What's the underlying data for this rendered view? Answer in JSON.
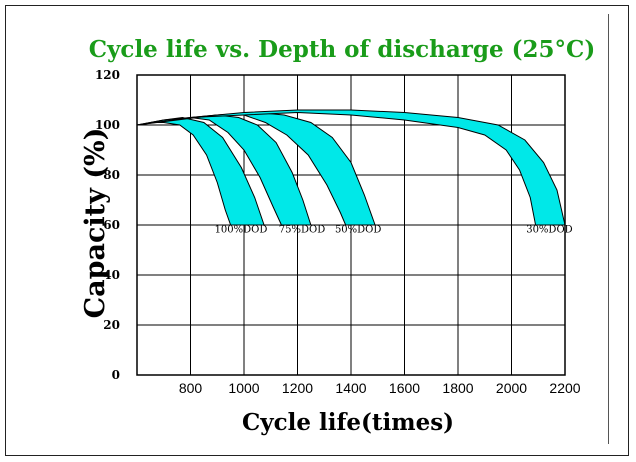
{
  "chart_data": {
    "type": "area",
    "title": "Cycle life vs. Depth of discharge (25°C)",
    "xlabel": "Cycle life(times)",
    "ylabel": "Capacity (%)",
    "x_ticks": [
      800,
      1000,
      1200,
      1400,
      1600,
      1800,
      2000,
      2200
    ],
    "y_ticks": [
      0,
      20,
      40,
      60,
      80,
      100,
      120
    ],
    "xlim": [
      600,
      2200
    ],
    "ylim": [
      0,
      120
    ],
    "grid": true,
    "colors": {
      "band": "#00e8e8",
      "title": "#1a9c1a",
      "grid": "#000000"
    },
    "series": [
      {
        "label": "100%DOD",
        "label_pos": [
          890,
          57
        ],
        "upper": [
          [
            600,
            100
          ],
          [
            650,
            101
          ],
          [
            700,
            102
          ],
          [
            770,
            103
          ],
          [
            850,
            101
          ],
          [
            920,
            95
          ],
          [
            990,
            83
          ],
          [
            1040,
            71
          ],
          [
            1075,
            60
          ]
        ],
        "lower": [
          [
            600,
            100
          ],
          [
            650,
            101
          ],
          [
            700,
            101
          ],
          [
            760,
            100
          ],
          [
            810,
            96
          ],
          [
            860,
            88
          ],
          [
            900,
            77
          ],
          [
            930,
            66
          ],
          [
            950,
            60
          ]
        ]
      },
      {
        "label": "75%DOD",
        "label_pos": [
          1130,
          57
        ],
        "upper": [
          [
            600,
            100
          ],
          [
            700,
            102
          ],
          [
            800,
            103
          ],
          [
            900,
            104
          ],
          [
            980,
            103
          ],
          [
            1050,
            100
          ],
          [
            1120,
            93
          ],
          [
            1180,
            81
          ],
          [
            1220,
            70
          ],
          [
            1250,
            60
          ]
        ],
        "lower": [
          [
            600,
            100
          ],
          [
            700,
            102
          ],
          [
            800,
            103
          ],
          [
            870,
            102
          ],
          [
            940,
            97
          ],
          [
            1000,
            90
          ],
          [
            1060,
            79
          ],
          [
            1110,
            67
          ],
          [
            1140,
            60
          ]
        ]
      },
      {
        "label": "50%DOD",
        "label_pos": [
          1340,
          57
        ],
        "upper": [
          [
            600,
            100
          ],
          [
            750,
            102
          ],
          [
            900,
            104
          ],
          [
            1050,
            105
          ],
          [
            1150,
            104
          ],
          [
            1250,
            101
          ],
          [
            1330,
            95
          ],
          [
            1400,
            85
          ],
          [
            1450,
            72
          ],
          [
            1490,
            60
          ]
        ],
        "lower": [
          [
            600,
            100
          ],
          [
            750,
            102
          ],
          [
            900,
            104
          ],
          [
            1000,
            104
          ],
          [
            1080,
            101
          ],
          [
            1160,
            96
          ],
          [
            1240,
            88
          ],
          [
            1310,
            76
          ],
          [
            1360,
            65
          ],
          [
            1380,
            60
          ]
        ]
      },
      {
        "label": "30%DOD",
        "label_pos": [
          2055,
          57
        ],
        "upper": [
          [
            600,
            100
          ],
          [
            800,
            103
          ],
          [
            1000,
            105
          ],
          [
            1200,
            106
          ],
          [
            1400,
            106
          ],
          [
            1600,
            105
          ],
          [
            1800,
            103
          ],
          [
            1950,
            100
          ],
          [
            2050,
            94
          ],
          [
            2120,
            85
          ],
          [
            2170,
            74
          ],
          [
            2200,
            60
          ]
        ],
        "lower": [
          [
            600,
            100
          ],
          [
            800,
            103
          ],
          [
            1000,
            104
          ],
          [
            1200,
            105
          ],
          [
            1400,
            104
          ],
          [
            1600,
            102
          ],
          [
            1800,
            99
          ],
          [
            1900,
            96
          ],
          [
            1980,
            90
          ],
          [
            2030,
            82
          ],
          [
            2070,
            71
          ],
          [
            2090,
            60
          ]
        ]
      }
    ]
  }
}
